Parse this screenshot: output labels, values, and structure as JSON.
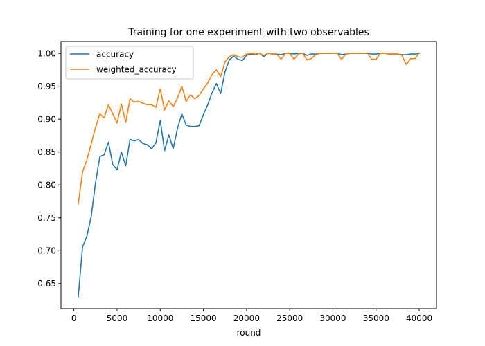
{
  "chart_data": {
    "type": "line",
    "title": "Training for one experiment with two observables",
    "xlabel": "round",
    "ylabel": "",
    "xlim": [
      -1500,
      42000
    ],
    "ylim": [
      0.612,
      1.018
    ],
    "xticks": [
      0,
      5000,
      10000,
      15000,
      20000,
      25000,
      30000,
      35000,
      40000
    ],
    "yticks": [
      0.65,
      0.7,
      0.75,
      0.8,
      0.85,
      0.9,
      0.95,
      1.0
    ],
    "grid": false,
    "legend_position": "upper-left",
    "x": [
      500,
      1000,
      1500,
      2000,
      2500,
      3000,
      3500,
      4000,
      4500,
      5000,
      5500,
      6000,
      6500,
      7000,
      7500,
      8000,
      8500,
      9000,
      9500,
      10000,
      10500,
      11000,
      11500,
      12000,
      12500,
      13000,
      13500,
      14000,
      14500,
      15000,
      15500,
      16000,
      16500,
      17000,
      17500,
      18000,
      18500,
      19000,
      19500,
      20000,
      20500,
      21000,
      21500,
      22000,
      22500,
      23000,
      23500,
      24000,
      24500,
      25000,
      25500,
      26000,
      26500,
      27000,
      27500,
      28000,
      28500,
      29000,
      29500,
      30000,
      30500,
      31000,
      31500,
      32000,
      32500,
      33000,
      33500,
      34000,
      34500,
      35000,
      35500,
      36000,
      36500,
      37000,
      37500,
      38000,
      38500,
      39000,
      39500,
      40000
    ],
    "series": [
      {
        "name": "accuracy",
        "color": "#1f77b4",
        "values": [
          0.63,
          0.706,
          0.722,
          0.752,
          0.803,
          0.843,
          0.846,
          0.865,
          0.831,
          0.823,
          0.85,
          0.829,
          0.869,
          0.867,
          0.869,
          0.863,
          0.861,
          0.855,
          0.864,
          0.898,
          0.852,
          0.876,
          0.855,
          0.886,
          0.908,
          0.891,
          0.889,
          0.889,
          0.89,
          0.907,
          0.922,
          0.94,
          0.954,
          0.939,
          0.972,
          0.99,
          0.996,
          0.991,
          0.989,
          0.997,
          0.999,
          0.998,
          1.0,
          0.995,
          1.0,
          0.999,
          0.999,
          0.998,
          1.0,
          1.0,
          0.999,
          1.0,
          1.0,
          0.997,
          0.999,
          0.999,
          1.0,
          1.0,
          1.0,
          1.0,
          1.0,
          0.998,
          0.999,
          1.0,
          1.0,
          1.0,
          1.0,
          1.0,
          0.999,
          0.999,
          1.0,
          1.0,
          0.999,
          0.999,
          0.999,
          0.998,
          0.998,
          0.999,
          0.999,
          1.0
        ]
      },
      {
        "name": "weighted_accuracy",
        "color": "#ff7f0e",
        "values": [
          0.771,
          0.82,
          0.838,
          0.862,
          0.887,
          0.908,
          0.902,
          0.922,
          0.908,
          0.894,
          0.923,
          0.895,
          0.931,
          0.926,
          0.927,
          0.924,
          0.922,
          0.922,
          0.918,
          0.946,
          0.914,
          0.928,
          0.919,
          0.932,
          0.95,
          0.927,
          0.937,
          0.931,
          0.936,
          0.946,
          0.955,
          0.968,
          0.975,
          0.965,
          0.987,
          0.995,
          0.998,
          0.995,
          0.994,
          0.999,
          1.0,
          0.999,
          1.0,
          0.997,
          1.0,
          0.999,
          0.999,
          0.991,
          1.0,
          1.0,
          0.991,
          0.999,
          1.0,
          0.99,
          0.992,
          0.998,
          1.0,
          1.0,
          1.0,
          1.0,
          1.0,
          0.991,
          0.999,
          1.0,
          1.0,
          1.0,
          1.0,
          1.0,
          0.991,
          0.991,
          1.0,
          1.0,
          0.999,
          0.999,
          0.999,
          0.997,
          0.983,
          0.992,
          0.992,
          1.0
        ]
      }
    ]
  }
}
